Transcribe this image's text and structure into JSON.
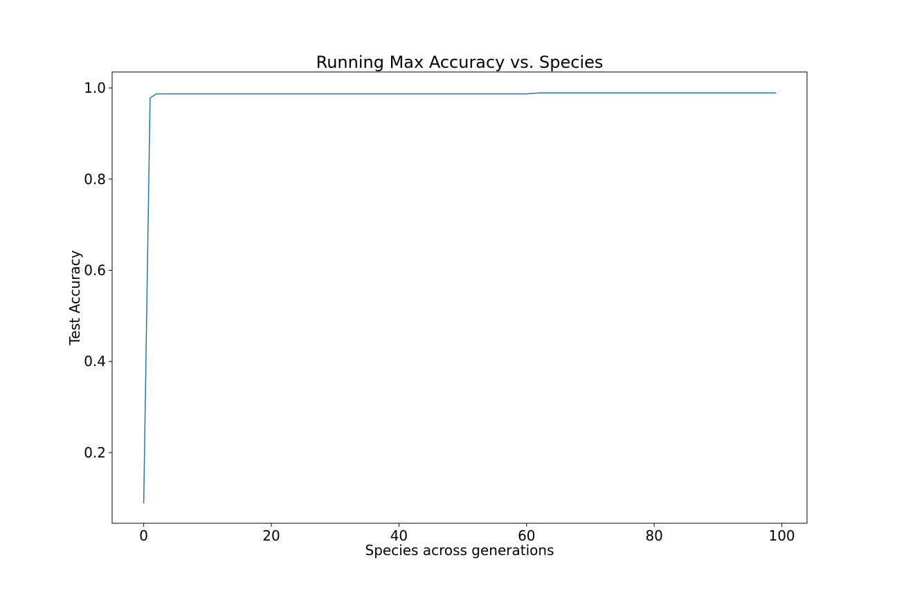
{
  "chart_data": {
    "type": "line",
    "title": "Running Max Accuracy vs. Species",
    "xlabel": "Species across generations",
    "ylabel": "Test Accuracy",
    "xlim": [
      -4.95,
      103.95
    ],
    "ylim": [
      0.045,
      1.035
    ],
    "xticks": [
      0,
      20,
      40,
      60,
      80,
      100
    ],
    "xtick_labels": [
      "0",
      "20",
      "40",
      "60",
      "80",
      "100"
    ],
    "yticks": [
      0.2,
      0.4,
      0.6,
      0.8,
      1.0
    ],
    "ytick_labels": [
      "0.2",
      "0.4",
      "0.6",
      "0.8",
      "1.0"
    ],
    "grid": false,
    "series": [
      {
        "color": "#1f77b4",
        "x": [
          0,
          1,
          2,
          60,
          62,
          99
        ],
        "y": [
          0.09,
          0.978,
          0.987,
          0.987,
          0.989,
          0.989
        ]
      }
    ]
  }
}
